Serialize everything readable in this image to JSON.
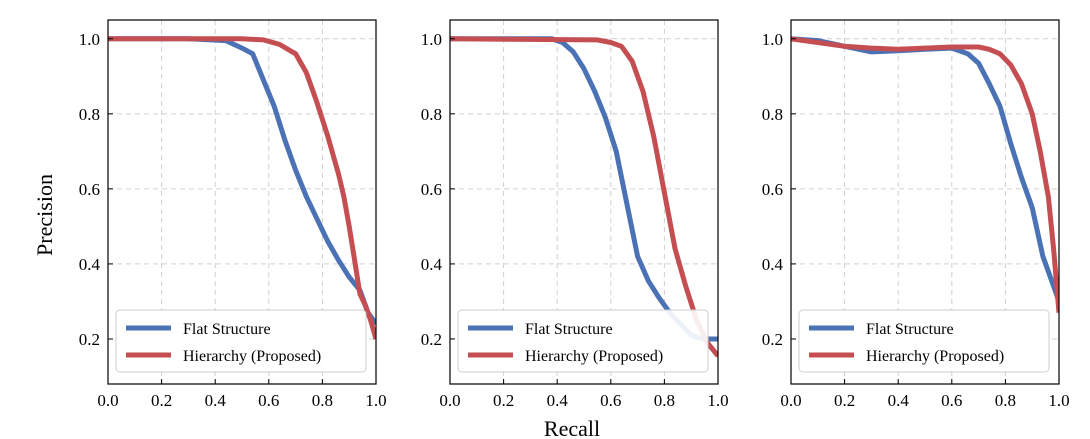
{
  "figure": {
    "ylabel": "Precision",
    "xlabel": "Recall"
  },
  "colors": {
    "flat": "#4A72B5",
    "hierarchy": "#C44E52",
    "grid": "#d0d0d0",
    "axis": "#000000"
  },
  "chart_data": [
    {
      "type": "line",
      "xlim": [
        0.0,
        1.0
      ],
      "ylim": [
        0.08,
        1.05
      ],
      "x_ticks": [
        "0.0",
        "0.2",
        "0.4",
        "0.6",
        "0.8",
        "1.0"
      ],
      "y_ticks": [
        "0.2",
        "0.4",
        "0.6",
        "0.8",
        "1.0"
      ],
      "grid": true,
      "legend": "lower-left",
      "series": [
        {
          "name": "Flat Structure",
          "x": [
            0.0,
            0.3,
            0.44,
            0.5,
            0.54,
            0.58,
            0.62,
            0.66,
            0.7,
            0.74,
            0.78,
            0.82,
            0.86,
            0.9,
            0.94,
            0.97,
            1.0
          ],
          "y": [
            1.0,
            1.0,
            0.995,
            0.975,
            0.96,
            0.89,
            0.82,
            0.73,
            0.65,
            0.58,
            0.52,
            0.46,
            0.41,
            0.365,
            0.33,
            0.27,
            0.24
          ]
        },
        {
          "name": "Hierarchy (Proposed)",
          "x": [
            0.0,
            0.5,
            0.58,
            0.64,
            0.7,
            0.74,
            0.78,
            0.82,
            0.86,
            0.88,
            0.9,
            0.92,
            0.94,
            0.96,
            0.98,
            1.0
          ],
          "y": [
            1.0,
            1.0,
            0.997,
            0.985,
            0.96,
            0.91,
            0.83,
            0.74,
            0.64,
            0.58,
            0.5,
            0.41,
            0.32,
            0.29,
            0.25,
            0.2
          ]
        }
      ]
    },
    {
      "type": "line",
      "xlim": [
        0.0,
        1.0
      ],
      "ylim": [
        0.08,
        1.05
      ],
      "x_ticks": [
        "0.0",
        "0.2",
        "0.4",
        "0.6",
        "0.8",
        "1.0"
      ],
      "y_ticks": [
        "0.2",
        "0.4",
        "0.6",
        "0.8",
        "1.0"
      ],
      "grid": true,
      "legend": "lower-left",
      "series": [
        {
          "name": "Flat Structure",
          "x": [
            0.0,
            0.38,
            0.42,
            0.46,
            0.5,
            0.54,
            0.58,
            0.62,
            0.66,
            0.7,
            0.74,
            0.78,
            0.82,
            0.86,
            0.9,
            0.94,
            1.0
          ],
          "y": [
            1.0,
            1.0,
            0.99,
            0.965,
            0.92,
            0.86,
            0.79,
            0.7,
            0.56,
            0.42,
            0.355,
            0.31,
            0.27,
            0.24,
            0.21,
            0.2,
            0.2
          ]
        },
        {
          "name": "Hierarchy (Proposed)",
          "x": [
            0.0,
            0.55,
            0.6,
            0.64,
            0.68,
            0.72,
            0.76,
            0.8,
            0.84,
            0.88,
            0.92,
            0.96,
            1.0
          ],
          "y": [
            1.0,
            0.997,
            0.99,
            0.98,
            0.94,
            0.86,
            0.74,
            0.59,
            0.44,
            0.34,
            0.25,
            0.19,
            0.155
          ]
        }
      ]
    },
    {
      "type": "line",
      "xlim": [
        0.0,
        1.0
      ],
      "ylim": [
        0.08,
        1.05
      ],
      "x_ticks": [
        "0.0",
        "0.2",
        "0.4",
        "0.6",
        "0.8",
        "1.0"
      ],
      "y_ticks": [
        "0.2",
        "0.4",
        "0.6",
        "0.8",
        "1.0"
      ],
      "grid": true,
      "legend": "lower-left",
      "series": [
        {
          "name": "Flat Structure",
          "x": [
            0.0,
            0.1,
            0.2,
            0.3,
            0.4,
            0.5,
            0.6,
            0.66,
            0.7,
            0.74,
            0.78,
            0.82,
            0.86,
            0.9,
            0.94,
            0.97,
            1.0
          ],
          "y": [
            1.0,
            0.995,
            0.98,
            0.965,
            0.968,
            0.972,
            0.975,
            0.96,
            0.935,
            0.88,
            0.82,
            0.72,
            0.63,
            0.55,
            0.42,
            0.36,
            0.3
          ]
        },
        {
          "name": "Hierarchy (Proposed)",
          "x": [
            0.0,
            0.1,
            0.2,
            0.3,
            0.4,
            0.5,
            0.6,
            0.7,
            0.74,
            0.78,
            0.82,
            0.86,
            0.9,
            0.93,
            0.96,
            0.98,
            1.0
          ],
          "y": [
            1.0,
            0.99,
            0.98,
            0.975,
            0.972,
            0.975,
            0.978,
            0.978,
            0.972,
            0.96,
            0.93,
            0.88,
            0.8,
            0.7,
            0.58,
            0.44,
            0.27
          ]
        }
      ]
    }
  ]
}
